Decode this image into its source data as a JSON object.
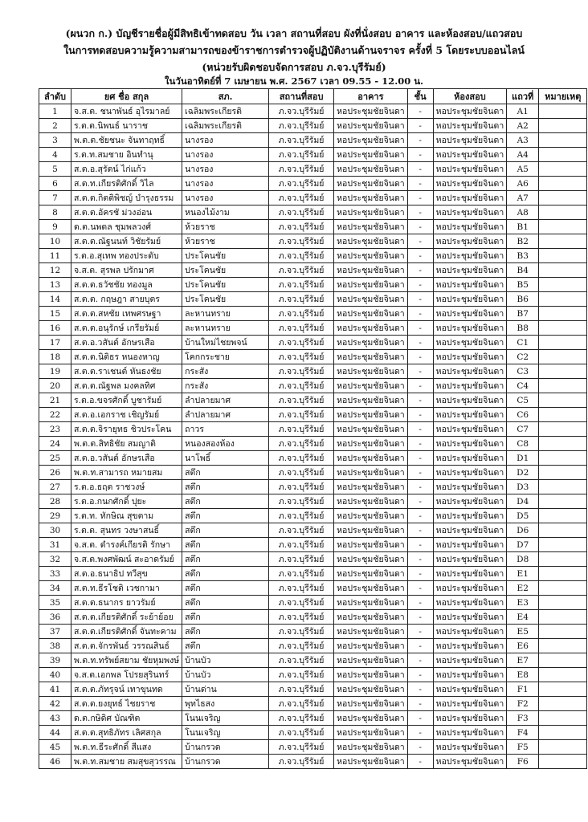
{
  "header": {
    "line1": "(ผนวก ก.) บัญชีรายชื่อผู้มีสิทธิเข้าทดสอบ วัน เวลา สถานที่สอบ ผังที่นั่งสอบ อาคาร และห้องสอบ/แถวสอบ",
    "line2": "ในการทดสอบความรู้ความสามารถของข้าราชการตำรวจผู้ปฏิบัติงานด้านจราจร ครั้งที่ 5 โดยระบบออนไลน์",
    "line3": "(หน่วยรับผิดชอบจัดการสอบ ภ.จว.บุรีรัมย์)",
    "line4": "ในวันอาทิตย์ที่ 7 เมษายน พ.ศ. 2567 เวลา 09.55 - 12.00 น."
  },
  "columns": [
    "ลำดับ",
    "ยศ ชื่อ สกุล",
    "สภ.",
    "สถานที่สอบ",
    "อาคาร",
    "ชั้น",
    "ห้องสอบ",
    "แถวที่",
    "หมายเหตุ"
  ],
  "rows": [
    [
      "1",
      "จ.ส.ต. ชนาพันธ์ อุไรมาลย์",
      "เฉลิมพระเกียรติ",
      "ภ.จว.บุรีรัมย์",
      "หอประชุมชัยจินดา",
      "-",
      "หอประชุมชัยจินดา",
      "A1",
      ""
    ],
    [
      "2",
      "ร.ต.ต.นิพนธ์ นาราช",
      "เฉลิมพระเกียรติ",
      "ภ.จว.บุรีรัมย์",
      "หอประชุมชัยจินดา",
      "-",
      "หอประชุมชัยจินดา",
      "A2",
      ""
    ],
    [
      "3",
      "พ.ต.ต.ชัยชนะ จันทาฤทธิ์",
      "นางรอง",
      "ภ.จว.บุรีรัมย์",
      "หอประชุมชัยจินดา",
      "-",
      "หอประชุมชัยจินดา",
      "A3",
      ""
    ],
    [
      "4",
      "ร.ต.ท.สมชาย อินทำนุ",
      "นางรอง",
      "ภ.จว.บุรีรัมย์",
      "หอประชุมชัยจินดา",
      "-",
      "หอประชุมชัยจินดา",
      "A4",
      ""
    ],
    [
      "5",
      "ส.ต.อ.สุรัตน์ ไก่แก้ว",
      "นางรอง",
      "ภ.จว.บุรีรัมย์",
      "หอประชุมชัยจินดา",
      "-",
      "หอประชุมชัยจินดา",
      "A5",
      ""
    ],
    [
      "6",
      "ส.ต.ท.เกียรติศักดิ์ วิไล",
      "นางรอง",
      "ภ.จว.บุรีรัมย์",
      "หอประชุมชัยจินดา",
      "-",
      "หอประชุมชัยจินดา",
      "A6",
      ""
    ],
    [
      "7",
      "ส.ต.ต.กิตติพิชญ์ บำรุงธรรม",
      "นางรอง",
      "ภ.จว.บุรีรัมย์",
      "หอประชุมชัยจินดา",
      "-",
      "หอประชุมชัยจินดา",
      "A7",
      ""
    ],
    [
      "8",
      "ส.ต.ต.อัครชั ม่วงอ่อน",
      "หนองไม้งาม",
      "ภ.จว.บุรีรัมย์",
      "หอประชุมชัยจินดา",
      "-",
      "หอประชุมชัยจินดา",
      "A8",
      ""
    ],
    [
      "9",
      "ด.ต.นพดล ชุมพลวงศ์",
      "ห้วยราช",
      "ภ.จว.บุรีรัมย์",
      "หอประชุมชัยจินดา",
      "-",
      "หอประชุมชัยจินดา",
      "B1",
      ""
    ],
    [
      "10",
      "ส.ต.ต.ณัฐนนท์ วิชัยรัมย์",
      "ห้วยราช",
      "ภ.จว.บุรีรัมย์",
      "หอประชุมชัยจินดา",
      "-",
      "หอประชุมชัยจินดา",
      "B2",
      ""
    ],
    [
      "11",
      "ร.ต.อ.สุเทพ ทองประดับ",
      "ประโคนชัย",
      "ภ.จว.บุรีรัมย์",
      "หอประชุมชัยจินดา",
      "-",
      "หอประชุมชัยจินดา",
      "B3",
      ""
    ],
    [
      "12",
      "จ.ส.ต. สุรพล ปรักมาศ",
      "ประโคนชัย",
      "ภ.จว.บุรีรัมย์",
      "หอประชุมชัยจินดา",
      "-",
      "หอประชุมชัยจินดา",
      "B4",
      ""
    ],
    [
      "13",
      "ส.ต.ต.ธวัชชัย ทองมูล",
      "ประโคนชัย",
      "ภ.จว.บุรีรัมย์",
      "หอประชุมชัยจินดา",
      "-",
      "หอประชุมชัยจินดา",
      "B5",
      ""
    ],
    [
      "14",
      "ส.ต.ต. กฤษฎา สายบุตร",
      "ประโคนชัย",
      "ภ.จว.บุรีรัมย์",
      "หอประชุมชัยจินดา",
      "-",
      "หอประชุมชัยจินดา",
      "B6",
      ""
    ],
    [
      "15",
      "ส.ต.ต.สหชัย เทพศรษฐา",
      "ละหานทราย",
      "ภ.จว.บุรีรัมย์",
      "หอประชุมชัยจินดา",
      "-",
      "หอประชุมชัยจินดา",
      "B7",
      ""
    ],
    [
      "16",
      "ส.ต.ต.อนุรักษ์ เกรียรัมย์",
      "ละหานทราย",
      "ภ.จว.บุรีรัมย์",
      "หอประชุมชัยจินดา",
      "-",
      "หอประชุมชัยจินดา",
      "B8",
      ""
    ],
    [
      "17",
      "ส.ต.อ.วสันต์ อักษรเสือ",
      "บ้านใหม่ไชยพจน์",
      "ภ.จว.บุรีรัมย์",
      "หอประชุมชัยจินดา",
      "-",
      "หอประชุมชัยจินดา",
      "C1",
      ""
    ],
    [
      "18",
      "ส.ต.ต.นิติธร หนองหาญ",
      "โคกกระชาย",
      "ภ.จว.บุรีรัมย์",
      "หอประชุมชัยจินดา",
      "-",
      "หอประชุมชัยจินดา",
      "C2",
      ""
    ],
    [
      "19",
      "ส.ต.ต.ราเชนต์ หันธงชัย",
      "กระสัง",
      "ภ.จว.บุรีรัมย์",
      "หอประชุมชัยจินดา",
      "-",
      "หอประชุมชัยจินดา",
      "C3",
      ""
    ],
    [
      "20",
      "ส.ต.ต.ณัฐพล มงคลทิศ",
      "กระสัง",
      "ภ.จว.บุรีรัมย์",
      "หอประชุมชัยจินดา",
      "-",
      "หอประชุมชัยจินดา",
      "C4",
      ""
    ],
    [
      "21",
      "ร.ต.อ.ขจรศักดิ์ บูชารัมย์",
      "ลำปลายมาศ",
      "ภ.จว.บุรีรัมย์",
      "หอประชุมชัยจินดา",
      "-",
      "หอประชุมชัยจินดา",
      "C5",
      ""
    ],
    [
      "22",
      "ส.ต.อ.เอกราช เชิญรัมย์",
      "ลำปลายมาศ",
      "ภ.จว.บุรีรัมย์",
      "หอประชุมชัยจินดา",
      "-",
      "หอประชุมชัยจินดา",
      "C6",
      ""
    ],
    [
      "23",
      "ส.ต.ต.จิรายุทธ ชิวประโคน",
      "ถาวร",
      "ภ.จว.บุรีรัมย์",
      "หอประชุมชัยจินดา",
      "-",
      "หอประชุมชัยจินดา",
      "C7",
      ""
    ],
    [
      "24",
      "พ.ต.ต.สิทธิชัย สมญาติ",
      "หนองสองห้อง",
      "ภ.จว.บุรีรัมย์",
      "หอประชุมชัยจินดา",
      "-",
      "หอประชุมชัยจินดา",
      "C8",
      ""
    ],
    [
      "25",
      "ส.ต.อ.วสันต์ อักษรเสือ",
      "นาโพธิ์",
      "ภ.จว.บุรีรัมย์",
      "หอประชุมชัยจินดา",
      "-",
      "หอประชุมชัยจินดา",
      "D1",
      ""
    ],
    [
      "26",
      "พ.ต.ท.สามารถ หมายสม",
      "สตึก",
      "ภ.จว.บุรีรัมย์",
      "หอประชุมชัยจินดา",
      "-",
      "หอประชุมชัยจินดา",
      "D2",
      ""
    ],
    [
      "27",
      "ร.ต.อ.ธฤต ราชวงษ์",
      "สตึก",
      "ภ.จว.บุรีรัมย์",
      "หอประชุมชัยจินดา",
      "-",
      "หอประชุมชัยจินดา",
      "D3",
      ""
    ],
    [
      "28",
      "ร.ต.อ.กนกศักดิ์ ปุยะ",
      "สตึก",
      "ภ.จว.บุรีรัมย์",
      "หอประชุมชัยจินดา",
      "-",
      "หอประชุมชัยจินดา",
      "D4",
      ""
    ],
    [
      "29",
      "ร.ต.ท. ทักษิณ สุขตาม",
      "สตึก",
      "ภ.จว.บุรีรัมย์",
      "หอประชุมชัยจินดา",
      "-",
      "หอประชุมชัยจินดา",
      "D5",
      ""
    ],
    [
      "30",
      "ร.ต.ต. สุนทร วงษาสนธิ์",
      "สตึก",
      "ภ.จว.บุรีรัมย์",
      "หอประชุมชัยจินดา",
      "-",
      "หอประชุมชัยจินดา",
      "D6",
      ""
    ],
    [
      "31",
      "จ.ส.ต. ดำรงค์เกียรติ รักษา",
      "สตึก",
      "ภ.จว.บุรีรัมย์",
      "หอประชุมชัยจินดา",
      "-",
      "หอประชุมชัยจินดา",
      "D7",
      ""
    ],
    [
      "32",
      "จ.ส.ต.พงศพัฒน์ สะอาดรัมย์",
      "สตึก",
      "ภ.จว.บุรีรัมย์",
      "หอประชุมชัยจินดา",
      "-",
      "หอประชุมชัยจินดา",
      "D8",
      ""
    ],
    [
      "33",
      "ส.ต.อ.ธนาธิป ทวีสุข",
      "สตึก",
      "ภ.จว.บุรีรัมย์",
      "หอประชุมชัยจินดา",
      "-",
      "หอประชุมชัยจินดา",
      "E1",
      ""
    ],
    [
      "34",
      "ส.ต.ท.ธีรโชติ เวชกามา",
      "สตึก",
      "ภ.จว.บุรีรัมย์",
      "หอประชุมชัยจินดา",
      "-",
      "หอประชุมชัยจินดา",
      "E2",
      ""
    ],
    [
      "35",
      "ส.ต.ต.ธนากร ยาวรัมย์",
      "สตึก",
      "ภ.จว.บุรีรัมย์",
      "หอประชุมชัยจินดา",
      "-",
      "หอประชุมชัยจินดา",
      "E3",
      ""
    ],
    [
      "36",
      "ส.ต.ต.เกียรติศักดิ์ ระย้าย้อย",
      "สตึก",
      "ภ.จว.บุรีรัมย์",
      "หอประชุมชัยจินดา",
      "-",
      "หอประชุมชัยจินดา",
      "E4",
      ""
    ],
    [
      "37",
      "ส.ต.ต.เกียรติศักดิ์ จันทะคาม",
      "สตึก",
      "ภ.จว.บุรีรัมย์",
      "หอประชุมชัยจินดา",
      "-",
      "หอประชุมชัยจินดา",
      "E5",
      ""
    ],
    [
      "38",
      "ส.ต.ต.จักรพันธ์ วรรณสินธ์",
      "สตึก",
      "ภ.จว.บุรีรัมย์",
      "หอประชุมชัยจินดา",
      "-",
      "หอประชุมชัยจินดา",
      "E6",
      ""
    ],
    [
      "39",
      "พ.ต.ท.ทรัพย์สยาม ชัยหุมพงษ์",
      "บ้านบัว",
      "ภ.จว.บุรีรัมย์",
      "หอประชุมชัยจินดา",
      "-",
      "หอประชุมชัยจินดา",
      "E7",
      ""
    ],
    [
      "40",
      "จ.ส.ต.เอกพล โปรยสุรินทร์",
      "บ้านบัว",
      "ภ.จว.บุรีรัมย์",
      "หอประชุมชัยจินดา",
      "-",
      "หอประชุมชัยจินดา",
      "E8",
      ""
    ],
    [
      "41",
      "ส.ต.ต.ภัทรุจน์ เทาขุนทด",
      "บ้านด่าน",
      "ภ.จว.บุรีรัมย์",
      "หอประชุมชัยจินดา",
      "-",
      "หอประชุมชัยจินดา",
      "F1",
      ""
    ],
    [
      "42",
      "ส.ต.ต.ยงยุทธ์ ไชยราช",
      "พุทไธสง",
      "ภ.จว.บุรีรัมย์",
      "หอประชุมชัยจินดา",
      "-",
      "หอประชุมชัยจินดา",
      "F2",
      ""
    ],
    [
      "43",
      "ด.ต.กษิดิศ บัณฑิต",
      "โนนเจริญ",
      "ภ.จว.บุรีรัมย์",
      "หอประชุมชัยจินดา",
      "-",
      "หอประชุมชัยจินดา",
      "F3",
      ""
    ],
    [
      "44",
      "ส.ต.ต.สุทธิภัทร เลิศสกุล",
      "โนนเจริญ",
      "ภ.จว.บุรีรัมย์",
      "หอประชุมชัยจินดา",
      "-",
      "หอประชุมชัยจินดา",
      "F4",
      ""
    ],
    [
      "45",
      "พ.ต.ท.ธีระศักดิ์ สีแสง",
      "บ้านกรวด",
      "ภ.จว.บุรีรัมย์",
      "หอประชุมชัยจินดา",
      "-",
      "หอประชุมชัยจินดา",
      "F5",
      ""
    ],
    [
      "46",
      "พ.ต.ท.สมชาย สมสุขสุวรรณ",
      "บ้านกรวด",
      "ภ.จว.บุรีรัมย์",
      "หอประชุมชัยจินดา",
      "-",
      "หอประชุมชัยจินดา",
      "F6",
      ""
    ]
  ]
}
